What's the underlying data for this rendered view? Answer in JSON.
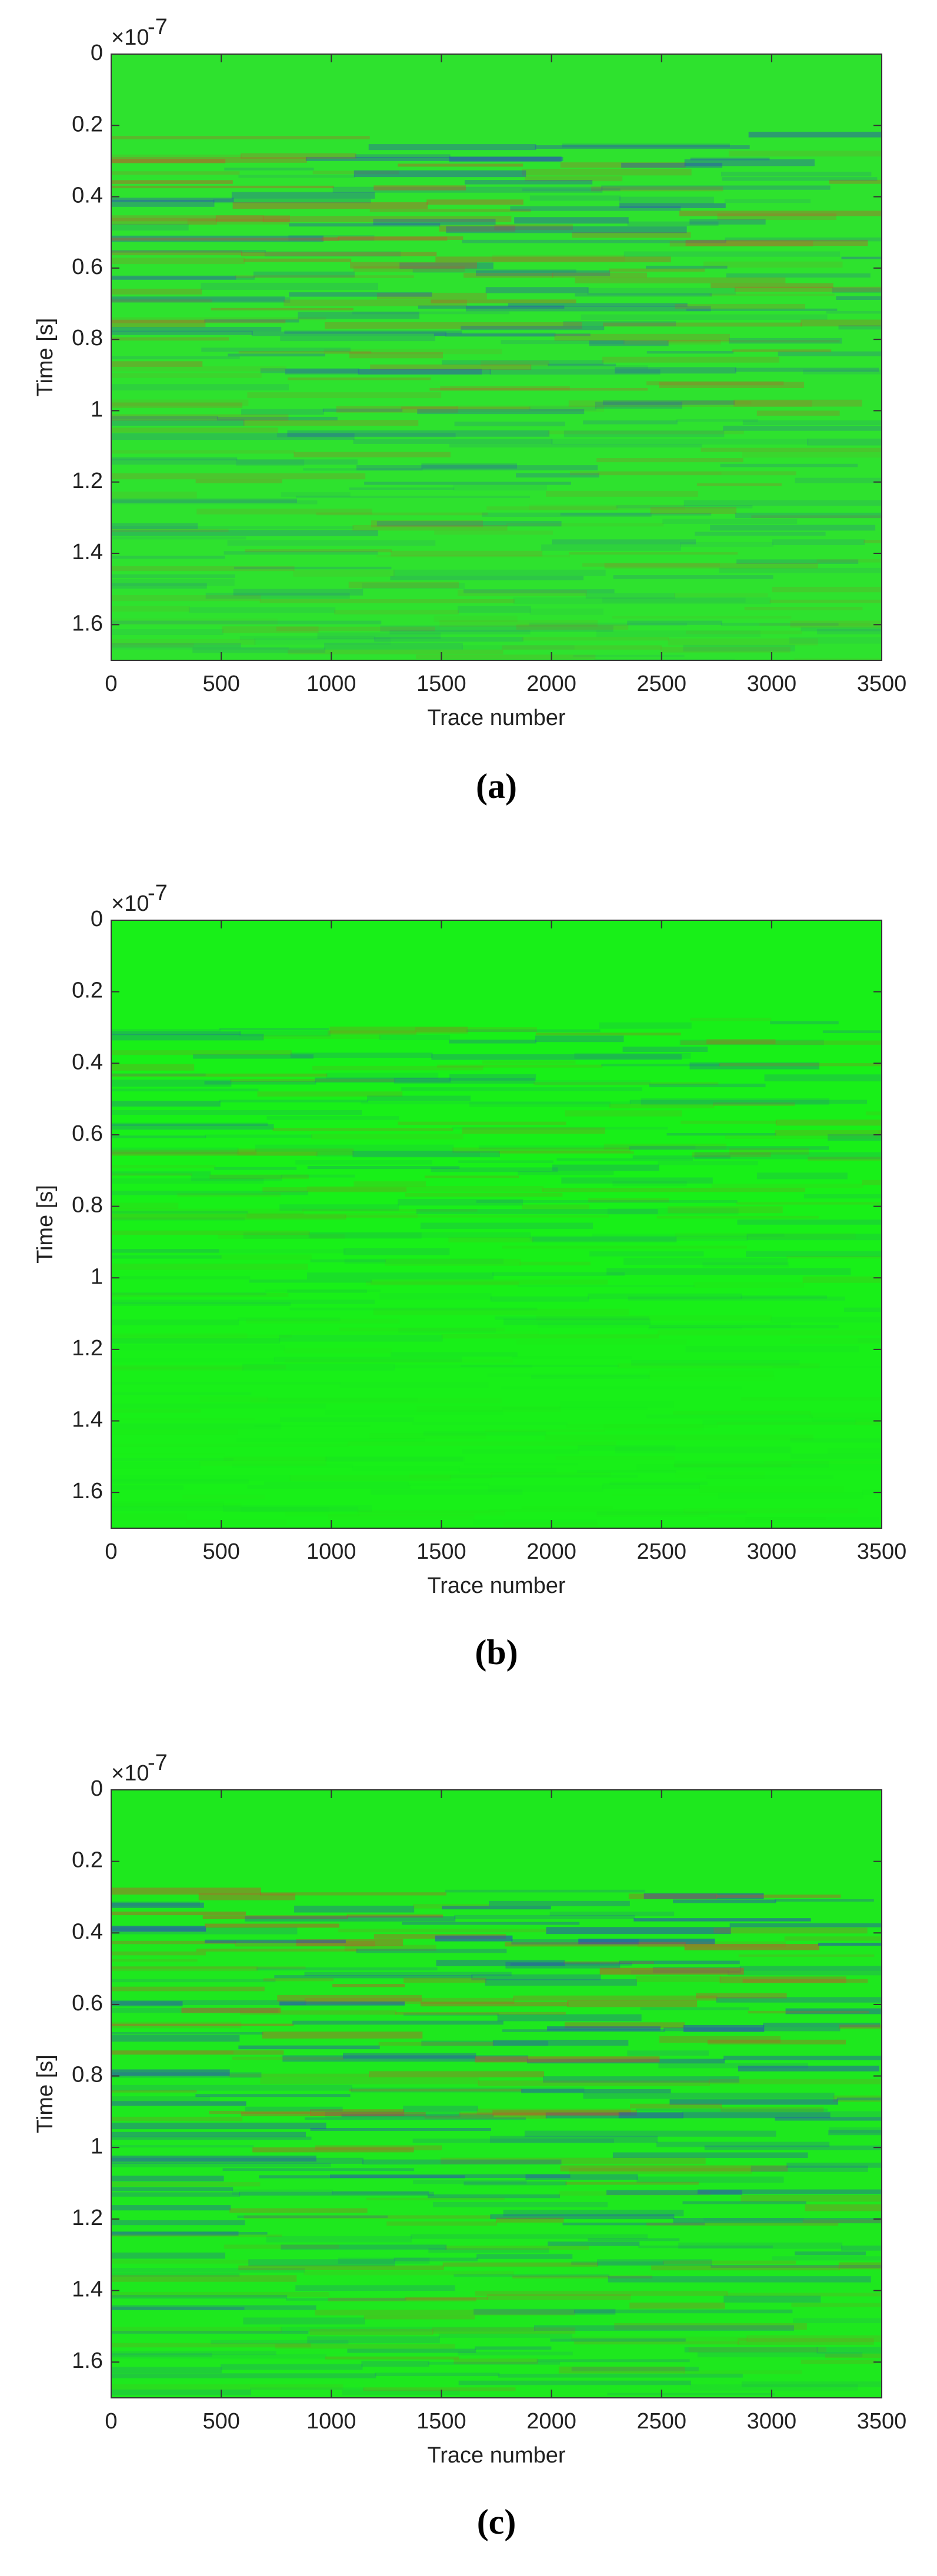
{
  "chart_data": [
    {
      "type": "heatmap",
      "caption": "(a)",
      "xlabel": "Trace number",
      "ylabel": "Time [s]",
      "y_scale_label": "×10",
      "y_scale_exponent": "-7",
      "xlim": [
        0,
        3500
      ],
      "xticks": [
        0,
        500,
        1000,
        1500,
        2000,
        2500,
        3000,
        3500
      ],
      "ylim": [
        0,
        1.7
      ],
      "yticks": [
        0,
        0.2,
        0.4,
        0.6,
        0.8,
        1,
        1.2,
        1.4,
        1.6
      ],
      "color": "#2ee22e"
    },
    {
      "type": "heatmap",
      "caption": "(b)",
      "xlabel": "Trace number",
      "ylabel": "Time [s]",
      "y_scale_label": "×10",
      "y_scale_exponent": "-7",
      "xlim": [
        0,
        3500
      ],
      "xticks": [
        0,
        500,
        1000,
        1500,
        2000,
        2500,
        3000,
        3500
      ],
      "ylim": [
        0,
        1.7
      ],
      "yticks": [
        0,
        0.2,
        0.4,
        0.6,
        0.8,
        1,
        1.2,
        1.4,
        1.6
      ],
      "color": "#18f018"
    },
    {
      "type": "heatmap",
      "caption": "(c)",
      "xlabel": "Trace number",
      "ylabel": "Time [s]",
      "y_scale_label": "×10",
      "y_scale_exponent": "-7",
      "xlim": [
        0,
        3500
      ],
      "xticks": [
        0,
        500,
        1000,
        1500,
        2000,
        2500,
        3000,
        3500
      ],
      "ylim": [
        0,
        1.7
      ],
      "yticks": [
        0,
        0.2,
        0.4,
        0.6,
        0.8,
        1,
        1.2,
        1.4,
        1.6
      ],
      "color": "#1ee81e"
    }
  ]
}
